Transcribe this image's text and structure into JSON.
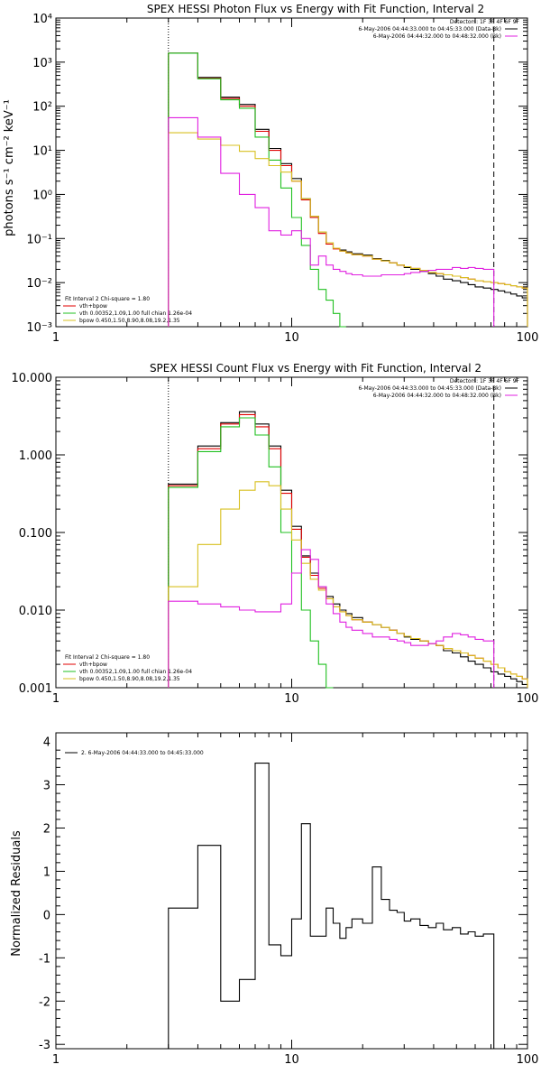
{
  "chart_data": [
    {
      "type": "line",
      "title": "SPEX HESSI Photon Flux vs Energy with Fit Function, Interval 2",
      "xlabel": "",
      "ylabel": "photons s⁻¹ cm⁻² keV⁻¹",
      "xscale": "log",
      "yscale": "log",
      "xlim": [
        1,
        100
      ],
      "ylim": [
        0.001,
        10000
      ],
      "xticks": [
        "1",
        "10",
        "100"
      ],
      "yticks": [
        "10⁻³",
        "10⁻²",
        "10⁻¹",
        "10⁰",
        "10¹",
        "10²",
        "10³",
        "10⁴"
      ],
      "grid": false,
      "dotted_line_x": 3,
      "dashed_line_x": 72,
      "legend_top_right": {
        "header": "Detectors: 1F 3F 4F 6F 9F",
        "entries": [
          {
            "label": "6-May-2006 04:44:33.000 to 04:45:33.000 (Data-Bk)",
            "color": "#000000"
          },
          {
            "label": "6-May-2006 04:44:32.000 to 04:48:32.000 (Bk)",
            "color": "#e020e0"
          }
        ]
      },
      "legend_bottom_left": {
        "header": "Fit Interval 2   Chi-square = 1.80",
        "entries": [
          {
            "label": "vth+bpow",
            "color": "#e00000"
          },
          {
            "label": "vth 0.00352,1.09,1.00  full chian 1.26e-04",
            "color": "#20c020"
          },
          {
            "label": "bpow 0.450,1.50,8.90,8.08,19.2,1.35",
            "color": "#d8c020"
          }
        ]
      },
      "series": [
        {
          "name": "Data-Bk",
          "color": "#000000",
          "edges": [
            3,
            4,
            5,
            6,
            7,
            8,
            9,
            10,
            11,
            12,
            13,
            14,
            15,
            16,
            17,
            18,
            20,
            22,
            24,
            26,
            28,
            30,
            32,
            35,
            38,
            41,
            44,
            48,
            52,
            56,
            60,
            65,
            70,
            75,
            80,
            85,
            90,
            95,
            100
          ],
          "values": [
            1600,
            450,
            160,
            110,
            30,
            11,
            5,
            2.3,
            0.8,
            0.32,
            0.14,
            0.08,
            0.06,
            0.055,
            0.05,
            0.045,
            0.042,
            0.035,
            0.032,
            0.028,
            0.025,
            0.022,
            0.02,
            0.018,
            0.016,
            0.014,
            0.012,
            0.011,
            0.01,
            0.009,
            0.008,
            0.0075,
            0.007,
            0.0065,
            0.006,
            0.0055,
            0.005,
            0.0045
          ]
        },
        {
          "name": "vth+bpow",
          "color": "#e00000",
          "edges": [
            3,
            4,
            5,
            6,
            7,
            8,
            9,
            10,
            11,
            12,
            13,
            14,
            15,
            16,
            17,
            18,
            20,
            22,
            24,
            26,
            28,
            30,
            32,
            35,
            38,
            41,
            44,
            48,
            52,
            56,
            60,
            65,
            70,
            75,
            80,
            85,
            90,
            95,
            100
          ],
          "values": [
            1600,
            430,
            150,
            100,
            27,
            10,
            4.5,
            2,
            0.75,
            0.3,
            0.13,
            0.075,
            0.058,
            0.052,
            0.047,
            0.043,
            0.04,
            0.034,
            0.031,
            0.028,
            0.025,
            0.023,
            0.021,
            0.019,
            0.017,
            0.016,
            0.015,
            0.014,
            0.013,
            0.012,
            0.011,
            0.0105,
            0.01,
            0.0095,
            0.009,
            0.0085,
            0.008,
            0.0075
          ]
        },
        {
          "name": "vth",
          "color": "#20c020",
          "edges": [
            3,
            4,
            5,
            6,
            7,
            8,
            9,
            10,
            11,
            12,
            13,
            14,
            15,
            16,
            17
          ],
          "values": [
            1600,
            420,
            140,
            90,
            20,
            6,
            1.4,
            0.3,
            0.07,
            0.02,
            0.007,
            0.004,
            0.002,
            0.001
          ]
        },
        {
          "name": "bpow",
          "color": "#d8c020",
          "edges": [
            3,
            4,
            5,
            6,
            7,
            8,
            9,
            10,
            11,
            12,
            13,
            14,
            15,
            16,
            17,
            18,
            20,
            22,
            24,
            26,
            28,
            30,
            32,
            35,
            38,
            41,
            44,
            48,
            52,
            56,
            60,
            65,
            70,
            75,
            80,
            85,
            90,
            95,
            100
          ],
          "values": [
            25,
            18,
            13,
            9.5,
            6.5,
            4.5,
            3.2,
            2,
            0.8,
            0.32,
            0.14,
            0.08,
            0.06,
            0.052,
            0.047,
            0.043,
            0.04,
            0.034,
            0.031,
            0.028,
            0.025,
            0.023,
            0.021,
            0.019,
            0.017,
            0.016,
            0.015,
            0.014,
            0.013,
            0.012,
            0.011,
            0.0105,
            0.01,
            0.0095,
            0.009,
            0.0085,
            0.008,
            0.0075
          ]
        },
        {
          "name": "Bk",
          "color": "#e020e0",
          "edges": [
            3,
            4,
            5,
            6,
            7,
            8,
            9,
            10,
            11,
            12,
            13,
            14,
            15,
            16,
            17,
            18,
            20,
            22,
            24,
            26,
            28,
            30,
            32,
            35,
            38,
            41,
            44,
            48,
            52,
            56,
            60,
            65,
            70,
            72
          ],
          "values": [
            55,
            20,
            3,
            1,
            0.5,
            0.15,
            0.12,
            0.15,
            0.1,
            0.025,
            0.04,
            0.025,
            0.02,
            0.018,
            0.016,
            0.015,
            0.014,
            0.014,
            0.015,
            0.015,
            0.015,
            0.016,
            0.017,
            0.018,
            0.019,
            0.02,
            0.02,
            0.022,
            0.021,
            0.022,
            0.021,
            0.02,
            0.02
          ]
        }
      ]
    },
    {
      "type": "line",
      "title": "SPEX HESSI Count Flux vs Energy with Fit Function, Interval 2",
      "xlabel": "",
      "ylabel": "",
      "xscale": "log",
      "yscale": "log",
      "xlim": [
        1,
        100
      ],
      "ylim": [
        0.001,
        10
      ],
      "xticks": [
        "1",
        "10",
        "100"
      ],
      "yticks": [
        "0.001",
        "0.010",
        "0.100",
        "1.000",
        "10.000"
      ],
      "grid": false,
      "dotted_line_x": 3,
      "dashed_line_x": 72,
      "legend_top_right": {
        "header": "Detectors: 1F 3F 4F 6F 9F",
        "entries": [
          {
            "label": "6-May-2006 04:44:33.000 to 04:45:33.000 (Data-Bk)",
            "color": "#000000"
          },
          {
            "label": "6-May-2006 04:44:32.000 to 04:48:32.000 (Bk)",
            "color": "#e020e0"
          }
        ]
      },
      "legend_bottom_left": {
        "header": "Fit Interval 2   Chi-square = 1.80",
        "entries": [
          {
            "label": "vth+bpow",
            "color": "#e00000"
          },
          {
            "label": "vth 0.00352,1.09,1.00  full chian 1.26e-04",
            "color": "#20c020"
          },
          {
            "label": "bpow 0.450,1.50,8.90,8.08,19.2,1.35",
            "color": "#d8c020"
          }
        ]
      },
      "series": [
        {
          "name": "Data-Bk",
          "color": "#000000",
          "edges": [
            3,
            4,
            5,
            6,
            7,
            8,
            9,
            10,
            11,
            12,
            13,
            14,
            15,
            16,
            17,
            18,
            20,
            22,
            24,
            26,
            28,
            30,
            32,
            35,
            38,
            41,
            44,
            48,
            52,
            56,
            60,
            65,
            70,
            75,
            80,
            85,
            90,
            95,
            100
          ],
          "values": [
            0.42,
            1.3,
            2.6,
            3.6,
            2.5,
            1.3,
            0.35,
            0.12,
            0.05,
            0.03,
            0.02,
            0.015,
            0.012,
            0.01,
            0.009,
            0.008,
            0.007,
            0.0065,
            0.006,
            0.0055,
            0.005,
            0.0045,
            0.0042,
            0.004,
            0.0037,
            0.0035,
            0.003,
            0.0028,
            0.0025,
            0.0022,
            0.002,
            0.0018,
            0.0016,
            0.0015,
            0.0014,
            0.0013,
            0.0012,
            0.0011
          ]
        },
        {
          "name": "vth+bpow",
          "color": "#e00000",
          "edges": [
            3,
            4,
            5,
            6,
            7,
            8,
            9,
            10,
            11,
            12,
            13,
            14,
            15,
            16,
            17,
            18,
            20,
            22,
            24,
            26,
            28,
            30,
            32,
            35,
            38,
            41,
            44,
            48,
            52,
            56,
            60,
            65,
            70,
            75,
            80,
            85,
            90,
            95,
            100
          ],
          "values": [
            0.4,
            1.2,
            2.5,
            3.3,
            2.3,
            1.2,
            0.32,
            0.11,
            0.048,
            0.028,
            0.019,
            0.014,
            0.011,
            0.0095,
            0.0085,
            0.0075,
            0.007,
            0.0065,
            0.006,
            0.0055,
            0.005,
            0.0046,
            0.0043,
            0.004,
            0.0037,
            0.0035,
            0.0032,
            0.003,
            0.0028,
            0.0026,
            0.0024,
            0.0022,
            0.002,
            0.0018,
            0.0016,
            0.0015,
            0.0014,
            0.0013
          ]
        },
        {
          "name": "vth",
          "color": "#20c020",
          "edges": [
            3,
            4,
            5,
            6,
            7,
            8,
            9,
            10,
            11,
            12,
            13,
            14,
            15
          ],
          "values": [
            0.38,
            1.1,
            2.3,
            3,
            1.8,
            0.7,
            0.1,
            0.03,
            0.01,
            0.004,
            0.002,
            0.001
          ]
        },
        {
          "name": "bpow",
          "color": "#d8c020",
          "edges": [
            3,
            4,
            5,
            6,
            7,
            8,
            9,
            10,
            11,
            12,
            13,
            14,
            15,
            16,
            17,
            18,
            20,
            22,
            24,
            26,
            28,
            30,
            32,
            35,
            38,
            41,
            44,
            48,
            52,
            56,
            60,
            65,
            70,
            75,
            80,
            85,
            90,
            95,
            100
          ],
          "values": [
            0.02,
            0.07,
            0.2,
            0.35,
            0.45,
            0.4,
            0.2,
            0.08,
            0.04,
            0.025,
            0.018,
            0.014,
            0.011,
            0.0095,
            0.0085,
            0.0075,
            0.007,
            0.0065,
            0.006,
            0.0055,
            0.005,
            0.0046,
            0.0043,
            0.004,
            0.0037,
            0.0035,
            0.0032,
            0.003,
            0.0028,
            0.0026,
            0.0024,
            0.0022,
            0.002,
            0.0018,
            0.0016,
            0.0015,
            0.0014,
            0.0013
          ]
        },
        {
          "name": "Bk",
          "color": "#e020e0",
          "edges": [
            3,
            4,
            5,
            6,
            7,
            8,
            9,
            10,
            11,
            12,
            13,
            14,
            15,
            16,
            17,
            18,
            20,
            22,
            24,
            26,
            28,
            30,
            32,
            35,
            38,
            41,
            44,
            48,
            52,
            56,
            60,
            65,
            70,
            72
          ],
          "values": [
            0.013,
            0.012,
            0.011,
            0.01,
            0.0095,
            0.0095,
            0.012,
            0.03,
            0.06,
            0.045,
            0.02,
            0.012,
            0.009,
            0.007,
            0.006,
            0.0055,
            0.005,
            0.0045,
            0.0045,
            0.0042,
            0.004,
            0.0038,
            0.0035,
            0.0035,
            0.0037,
            0.004,
            0.0045,
            0.005,
            0.0048,
            0.0045,
            0.0042,
            0.004,
            0.004
          ]
        }
      ]
    },
    {
      "type": "line",
      "title": "",
      "xlabel": "",
      "ylabel": "Normalized Residuals",
      "xscale": "log",
      "yscale": "linear",
      "xlim": [
        1,
        100
      ],
      "ylim": [
        -3.1,
        4.2
      ],
      "xticks": [
        "1",
        "10",
        "100"
      ],
      "yticks": [
        "-3",
        "-2",
        "-1",
        "0",
        "1",
        "2",
        "3",
        "4"
      ],
      "grid": false,
      "legend_top_left": {
        "entries": [
          {
            "label": "2.  6-May-2006 04:44:33.000 to 04:45:33.000",
            "color": "#000000"
          }
        ]
      },
      "series": [
        {
          "name": "",
          "color": "#000000",
          "edges": [
            3,
            3.5,
            4,
            5,
            6,
            7,
            8,
            9,
            10,
            11,
            12,
            13,
            14,
            15,
            16,
            17,
            18,
            20,
            22,
            24,
            26,
            28,
            30,
            32,
            35,
            38,
            41,
            44,
            48,
            52,
            56,
            60,
            65,
            70,
            72
          ],
          "values": [
            0.15,
            0.15,
            1.6,
            -2,
            -1.5,
            3.5,
            -0.7,
            -0.95,
            -0.1,
            2.1,
            -0.5,
            -0.5,
            0.15,
            -0.2,
            -0.55,
            -0.3,
            -0.1,
            -0.2,
            1.1,
            0.35,
            0.1,
            0.05,
            -0.15,
            -0.1,
            -0.25,
            -0.3,
            -0.2,
            -0.35,
            -0.3,
            -0.45,
            -0.4,
            -0.5,
            -0.45,
            -0.45
          ]
        }
      ]
    }
  ]
}
